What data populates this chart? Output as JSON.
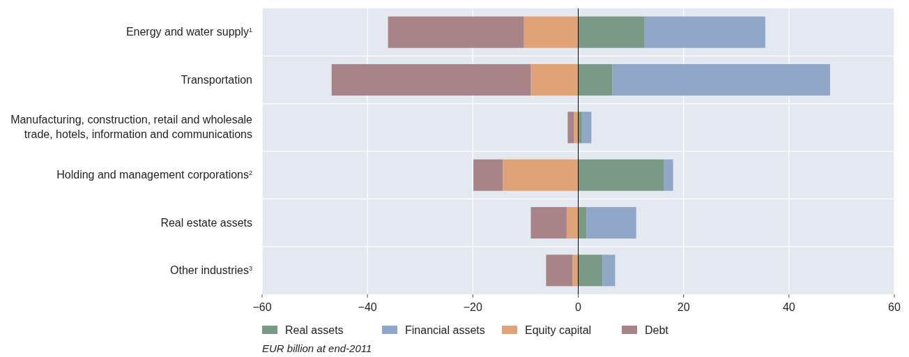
{
  "chart_data": {
    "type": "bar",
    "orientation": "horizontal",
    "stacked": true,
    "categories": [
      "Energy and water supply$^{1}$",
      "Transportation",
      "Manufacturing, construction, retail and wholesale trade, hotels, information and communications",
      "Holding and management corporations$^{2}$",
      "Real estate assets",
      "Other industries$^{3}$"
    ],
    "series": [
      {
        "name": "Real assets",
        "color": "#7a9a87",
        "values": [
          12.6,
          6.5,
          0.7,
          16.3,
          1.6,
          4.6
        ]
      },
      {
        "name": "Financial assets",
        "color": "#91a7c7",
        "values": [
          22.9,
          41.3,
          1.8,
          1.7,
          9.4,
          2.4
        ]
      },
      {
        "name": "Equity capital",
        "color": "#e0a378",
        "values": [
          -10.3,
          -9.0,
          -0.8,
          -14.3,
          -2.2,
          -1.1
        ]
      },
      {
        "name": "Debt",
        "color": "#a88488",
        "values": [
          -25.8,
          -37.8,
          -1.2,
          -5.6,
          -6.8,
          -5.0
        ]
      }
    ],
    "xlim": [
      -60,
      60
    ],
    "xticks": [
      {
        "value": -60,
        "label": "−60"
      },
      {
        "value": -40,
        "label": "−40"
      },
      {
        "value": -20,
        "label": "−20"
      },
      0,
      20,
      40,
      60
    ],
    "ref_lines": [
      {
        "axis": "x",
        "value": 0,
        "color": "#000000"
      }
    ],
    "grid": true,
    "legend": "bottom",
    "annotations": [
      "EUR billion at end-2011"
    ]
  }
}
